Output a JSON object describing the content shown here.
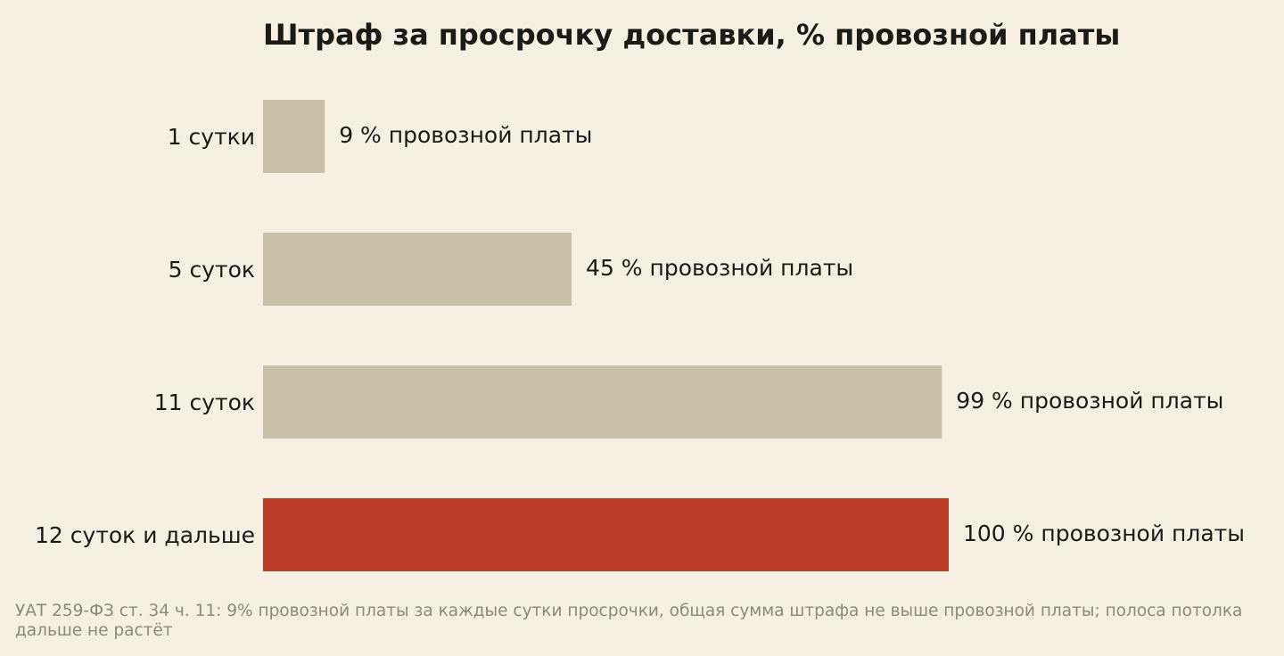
{
  "chart_data": {
    "type": "bar",
    "orientation": "horizontal",
    "title": "Штраф за просрочку доставки, % провозной платы",
    "categories": [
      "1 сутки",
      "5 суток",
      "11 суток",
      "12 суток и дальше"
    ],
    "values": [
      9,
      45,
      99,
      100
    ],
    "value_labels": [
      "9 % провозной платы",
      "45 % провозной платы",
      "99 % провозной платы",
      "100 % провозной платы"
    ],
    "xlim": [
      0,
      100
    ],
    "grid": false,
    "legend": "none",
    "colors": [
      "#c9c0a8",
      "#c9c0a8",
      "#c9c0a8",
      "#bc3d27"
    ]
  },
  "footnote": "УАТ 259-ФЗ ст. 34 ч. 11: 9% провозной платы за каждые сутки просрочки, общая сумма штрафа не выше провозной платы; полоса потолка дальше не растёт"
}
